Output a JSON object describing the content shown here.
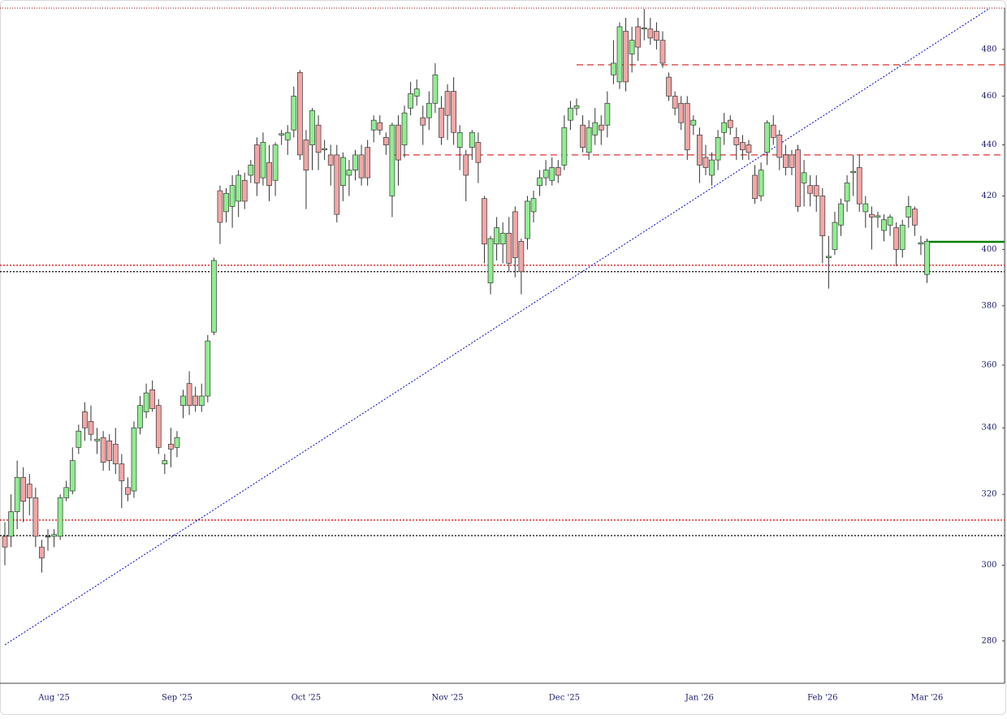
{
  "chart_data": {
    "type": "candlestick",
    "log_scale": true,
    "grid": false,
    "up_color": "#90ee90",
    "down_color": "#f4a6a6",
    "categories": [
      null,
      null,
      null,
      null,
      null,
      null,
      null,
      null,
      "Aug '25",
      null,
      null,
      null,
      null,
      null,
      null,
      null,
      null,
      null,
      null,
      null,
      null,
      null,
      null,
      null,
      null,
      null,
      null,
      null,
      "Sep '25",
      null,
      null,
      null,
      null,
      null,
      null,
      null,
      null,
      null,
      null,
      null,
      null,
      null,
      null,
      null,
      null,
      null,
      null,
      null,
      null,
      "Oct '25",
      null,
      null,
      null,
      null,
      null,
      null,
      null,
      null,
      null,
      null,
      null,
      null,
      null,
      null,
      null,
      null,
      null,
      null,
      null,
      null,
      null,
      null,
      "Nov '25",
      null,
      null,
      null,
      null,
      null,
      null,
      null,
      null,
      null,
      null,
      null,
      null,
      null,
      null,
      null,
      null,
      null,
      null,
      "Dec '25",
      null,
      null,
      null,
      null,
      null,
      null,
      null,
      null,
      null,
      null,
      null,
      null,
      null,
      null,
      null,
      null,
      null,
      null,
      null,
      null,
      null,
      "Jan '26",
      null,
      null,
      null,
      null,
      null,
      null,
      null,
      null,
      null,
      null,
      null,
      null,
      null,
      null,
      null,
      null,
      null,
      null,
      null,
      "Feb '26",
      null,
      null,
      null,
      null,
      null,
      null,
      null,
      null,
      null,
      null,
      null,
      null,
      null,
      null,
      null,
      null,
      "Mar '26"
    ],
    "open": [
      308,
      308,
      315,
      325,
      323,
      319,
      305,
      308,
      308,
      308,
      319,
      321,
      334,
      345,
      342,
      336,
      337,
      336,
      335,
      329,
      322,
      321,
      340,
      345,
      352,
      347,
      329,
      335,
      334,
      347,
      354,
      350,
      347,
      350,
      371,
      422,
      414,
      416,
      418,
      426,
      428,
      440,
      427,
      433,
      426,
      444,
      442,
      446,
      470,
      442,
      440,
      448,
      438,
      436,
      436,
      424,
      428,
      430,
      436,
      439,
      446,
      449,
      443,
      420,
      448,
      440,
      455,
      460,
      451,
      451,
      457,
      455,
      462,
      462,
      439,
      436,
      439,
      441,
      419,
      388,
      402,
      402,
      406,
      414,
      403,
      404,
      414,
      424,
      427,
      426,
      431,
      432,
      450,
      455,
      448,
      437,
      444,
      448,
      448,
      469,
      466,
      488,
      478,
      490,
      489,
      489,
      488,
      484,
      468,
      460,
      457,
      457,
      448,
      444,
      435,
      428,
      434,
      445,
      450,
      443,
      441,
      440,
      428,
      420,
      437,
      448,
      444,
      436,
      436,
      438,
      425,
      424,
      424,
      420,
      397,
      400,
      409,
      418,
      429,
      431,
      414,
      413,
      412,
      407,
      409,
      408,
      400,
      412,
      415,
      402,
      391
    ],
    "high": [
      312,
      320,
      330,
      328,
      326,
      322,
      307,
      310,
      310,
      320,
      324,
      334,
      341,
      348,
      347,
      340,
      339,
      338,
      340,
      332,
      325,
      342,
      350,
      354,
      355,
      349,
      332,
      340,
      339,
      352,
      358,
      353,
      354,
      370,
      397,
      424,
      423,
      428,
      430,
      429,
      434,
      443,
      445,
      440,
      441,
      446,
      448,
      464,
      471,
      446,
      455,
      452,
      442,
      440,
      440,
      437,
      434,
      438,
      440,
      442,
      452,
      452,
      445,
      449,
      452,
      456,
      466,
      467,
      456,
      462,
      474,
      460,
      465,
      468,
      448,
      438,
      446,
      445,
      420,
      405,
      412,
      410,
      412,
      416,
      404,
      420,
      422,
      430,
      434,
      435,
      434,
      452,
      458,
      459,
      452,
      450,
      455,
      452,
      462,
      484,
      492,
      494,
      490,
      494,
      498,
      494,
      492,
      488,
      470,
      462,
      460,
      460,
      452,
      447,
      440,
      437,
      446,
      453,
      452,
      447,
      444,
      442,
      432,
      433,
      450,
      452,
      446,
      440,
      438,
      440,
      434,
      428,
      428,
      423,
      405,
      414,
      419,
      428,
      436,
      436,
      420,
      416,
      414,
      413,
      413,
      410,
      411,
      420,
      416,
      405,
      404
    ],
    "low": [
      300,
      305,
      310,
      312,
      314,
      305,
      298,
      304,
      305,
      307,
      318,
      320,
      332,
      336,
      336,
      332,
      327,
      327,
      326,
      316,
      318,
      319,
      338,
      343,
      345,
      332,
      326,
      328,
      331,
      343,
      344,
      345,
      345,
      348,
      370,
      402,
      410,
      408,
      412,
      415,
      425,
      420,
      424,
      418,
      420,
      440,
      436,
      443,
      434,
      415,
      430,
      430,
      434,
      424,
      410,
      418,
      420,
      426,
      424,
      424,
      441,
      444,
      436,
      412,
      424,
      435,
      452,
      456,
      440,
      446,
      453,
      440,
      442,
      440,
      430,
      418,
      434,
      425,
      395,
      384,
      396,
      395,
      392,
      390,
      384,
      400,
      410,
      420,
      424,
      424,
      425,
      430,
      446,
      452,
      437,
      434,
      440,
      440,
      443,
      465,
      463,
      462,
      470,
      475,
      484,
      482,
      480,
      472,
      458,
      452,
      446,
      434,
      444,
      425,
      428,
      424,
      430,
      440,
      444,
      434,
      434,
      434,
      417,
      418,
      432,
      440,
      430,
      428,
      428,
      414,
      416,
      416,
      414,
      395,
      386,
      398,
      405,
      414,
      420,
      414,
      408,
      400,
      408,
      403,
      405,
      394,
      397,
      408,
      405,
      398,
      388
    ],
    "close": [
      305,
      315,
      325,
      318,
      319,
      308,
      302,
      308,
      308.5,
      319,
      322,
      330,
      339,
      340,
      338,
      336.5,
      329.5,
      330,
      329,
      324,
      320,
      340,
      347,
      351,
      346,
      334,
      330,
      333.5,
      337,
      350,
      347,
      347,
      350,
      368,
      396,
      410,
      421,
      424,
      428,
      418,
      432,
      425,
      441,
      424,
      440,
      444.5,
      445,
      460,
      436,
      430,
      454,
      437,
      438.5,
      432,
      413,
      435,
      430,
      436,
      427,
      427,
      450,
      446,
      440,
      448,
      434,
      453,
      461,
      463,
      448,
      457,
      469,
      443,
      452,
      445,
      445,
      428,
      445,
      433,
      402,
      404,
      408,
      406,
      395,
      397,
      392,
      418,
      419,
      427,
      430,
      431,
      428,
      447,
      455,
      456,
      439,
      447,
      449,
      446,
      457,
      474,
      490,
      466,
      484,
      481,
      489.5,
      485,
      484,
      474,
      460,
      455,
      449,
      438,
      450,
      432,
      431,
      434,
      443,
      449,
      447,
      440,
      438,
      437,
      419,
      430,
      449,
      443,
      435,
      431,
      431,
      416,
      429,
      421,
      420,
      405,
      397.5,
      410,
      417,
      425,
      429.5,
      417,
      417,
      412,
      412.5,
      411,
      412,
      400,
      409,
      416,
      409,
      402.5,
      403
    ],
    "ylim": [
      269.4,
      498.4
    ],
    "yticks": [
      280,
      300,
      320,
      340,
      360,
      380,
      400,
      420,
      440,
      460,
      480
    ],
    "levels": [
      {
        "value": 473.3,
        "color": "#e03030",
        "style": "dashed",
        "from": 93
      },
      {
        "value": 436,
        "color": "#e03030",
        "style": "dashed",
        "from": 63
      },
      {
        "value": 394.3,
        "color": "#e00000",
        "style": "dotted"
      },
      {
        "value": 392,
        "color": "#000000",
        "style": "dotted"
      },
      {
        "value": 312.6,
        "color": "#e00000",
        "style": "dotted"
      },
      {
        "value": 308.2,
        "color": "#000000",
        "style": "dotted"
      },
      {
        "value": 402.8,
        "color": "#008000",
        "style": "solid",
        "from": 150
      }
    ],
    "trendline": {
      "color": "#0000cc",
      "x": [
        0,
        160
      ],
      "values": [
        279,
        498
      ]
    }
  }
}
